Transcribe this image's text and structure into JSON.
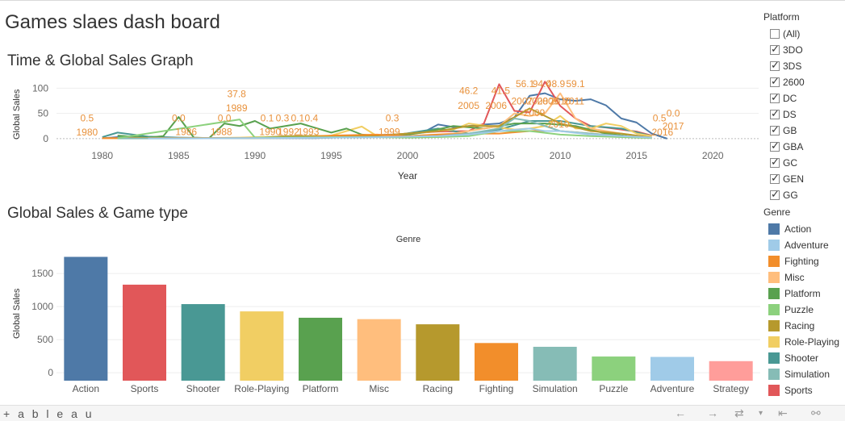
{
  "dashboard": {
    "title": "Games slaes dash board",
    "line_section_title": "Time & Global Sales Graph",
    "bar_section_title": "Global Sales & Game type"
  },
  "platform_filter": {
    "title": "Platform",
    "items": [
      {
        "label": "(All)",
        "checked": false
      },
      {
        "label": "3DO",
        "checked": true
      },
      {
        "label": "3DS",
        "checked": true
      },
      {
        "label": "2600",
        "checked": true
      },
      {
        "label": "DC",
        "checked": true
      },
      {
        "label": "DS",
        "checked": true
      },
      {
        "label": "GB",
        "checked": true
      },
      {
        "label": "GBA",
        "checked": true
      },
      {
        "label": "GC",
        "checked": true
      },
      {
        "label": "GEN",
        "checked": true
      },
      {
        "label": "GG",
        "checked": true
      }
    ]
  },
  "genre_legend": {
    "title": "Genre",
    "items": [
      {
        "label": "Action",
        "color": "#4e79a7"
      },
      {
        "label": "Adventure",
        "color": "#a0cbe8"
      },
      {
        "label": "Fighting",
        "color": "#f28e2b"
      },
      {
        "label": "Misc",
        "color": "#ffbe7d"
      },
      {
        "label": "Platform",
        "color": "#59a14f"
      },
      {
        "label": "Puzzle",
        "color": "#8cd17d"
      },
      {
        "label": "Racing",
        "color": "#b6992d"
      },
      {
        "label": "Role-Playing",
        "color": "#f1ce63"
      },
      {
        "label": "Shooter",
        "color": "#499894"
      },
      {
        "label": "Simulation",
        "color": "#86bcb6"
      },
      {
        "label": "Sports",
        "color": "#e15759"
      }
    ]
  },
  "toolbar": {
    "logo": "+ a b l e a u",
    "undo_icon": "undo-arrow-icon",
    "redo_icon": "redo-arrow-icon",
    "revert_icon": "revert-icon",
    "share_icon": "share-icon"
  },
  "chart_data": [
    {
      "type": "line",
      "title": "Time & Global Sales Graph",
      "xlabel": "Year",
      "ylabel": "Global Sales",
      "xlim": [
        1977,
        2023
      ],
      "ylim": [
        -5,
        115
      ],
      "x_ticks": [
        "1980",
        "1985",
        "1990",
        "1995",
        "2000",
        "2005",
        "2010",
        "2015",
        "2020"
      ],
      "y_ticks": [
        "0",
        "50",
        "100"
      ],
      "series": [
        {
          "name": "Action",
          "color": "#4e79a7",
          "x": [
            1980,
            1981,
            1982,
            1983,
            1985,
            1987,
            1989,
            1990,
            1991,
            1992,
            1993,
            1994,
            1995,
            1996,
            1997,
            1998,
            1999,
            2000,
            2001,
            2002,
            2003,
            2004,
            2005,
            2006,
            2007,
            2008,
            2009,
            2010,
            2011,
            2012,
            2013,
            2014,
            2015,
            2016,
            2017
          ],
          "y": [
            0.5,
            3,
            2,
            1,
            1,
            1,
            1,
            2,
            1,
            1,
            1,
            1,
            2,
            3,
            5,
            7,
            8,
            9,
            12,
            28,
            23,
            25,
            28,
            30,
            42,
            85,
            90,
            78,
            75,
            78,
            66,
            40,
            32,
            10,
            0.0
          ]
        },
        {
          "name": "Sports",
          "color": "#e15759",
          "x": [
            1980,
            1983,
            1986,
            1988,
            1990,
            1992,
            1995,
            1998,
            2000,
            2002,
            2004,
            2005,
            2006,
            2007,
            2008,
            2009,
            2010,
            2011,
            2012,
            2013,
            2014,
            2015,
            2016
          ],
          "y": [
            0.5,
            1,
            1,
            1,
            1,
            2,
            3,
            6,
            10,
            14,
            15,
            30,
            108,
            55,
            52,
            113,
            65,
            40,
            25,
            22,
            18,
            14,
            6
          ]
        },
        {
          "name": "Shooter",
          "color": "#499894",
          "x": [
            1980,
            1981,
            1983,
            1985,
            1987,
            1990,
            1993,
            1996,
            1999,
            2002,
            2004,
            2006,
            2008,
            2010,
            2012,
            2014,
            2016
          ],
          "y": [
            3,
            12,
            4,
            2,
            1,
            1,
            2,
            5,
            6,
            20,
            10,
            18,
            35,
            35,
            25,
            20,
            5
          ]
        },
        {
          "name": "Role-Playing",
          "color": "#f1ce63",
          "x": [
            1986,
            1989,
            1990,
            1992,
            1995,
            1997,
            1998,
            1999,
            2001,
            2003,
            2004,
            2006,
            2007,
            2008,
            2009,
            2010,
            2011,
            2012,
            2013,
            2014,
            2015,
            2016
          ],
          "y": [
            1,
            2,
            3,
            4,
            6,
            24,
            5,
            8,
            12,
            18,
            30,
            22,
            18,
            20,
            25,
            45,
            20,
            20,
            30,
            25,
            10,
            5
          ]
        },
        {
          "name": "Platform",
          "color": "#59a14f",
          "x": [
            1981,
            1983,
            1984,
            1985,
            1986,
            1987,
            1988,
            1989,
            1990,
            1991,
            1993,
            1995,
            1996,
            1997,
            1999,
            2001,
            2003,
            2005,
            2007,
            2009,
            2011,
            2013,
            2015
          ],
          "y": [
            6,
            2,
            5,
            43,
            2,
            1,
            30,
            25,
            35,
            20,
            30,
            12,
            20,
            8,
            4,
            12,
            25,
            20,
            30,
            30,
            25,
            10,
            3
          ]
        },
        {
          "name": "Misc",
          "color": "#ffbe7d",
          "x": [
            1980,
            1985,
            1990,
            1995,
            2000,
            2003,
            2006,
            2007,
            2008,
            2009,
            2010,
            2011,
            2012,
            2014,
            2016
          ],
          "y": [
            0.5,
            1,
            1,
            2,
            5,
            10,
            25,
            50,
            45,
            50,
            90,
            40,
            20,
            10,
            2
          ]
        },
        {
          "name": "Racing",
          "color": "#b6992d",
          "x": [
            1982,
            1985,
            1990,
            1992,
            1995,
            1998,
            2000,
            2002,
            2004,
            2006,
            2008,
            2010,
            2012,
            2014,
            2016
          ],
          "y": [
            1,
            1,
            1,
            5,
            5,
            6,
            10,
            15,
            25,
            25,
            60,
            30,
            15,
            10,
            2
          ]
        },
        {
          "name": "Fighting",
          "color": "#f28e2b",
          "x": [
            1980,
            1985,
            1990,
            1993,
            1995,
            1998,
            2000,
            2002,
            2004,
            2006,
            2008,
            2010,
            2012,
            2014,
            2016
          ],
          "y": [
            1,
            1,
            1,
            2,
            6,
            8,
            5,
            8,
            10,
            10,
            15,
            15,
            10,
            5,
            2
          ]
        },
        {
          "name": "Simulation",
          "color": "#86bcb6",
          "x": [
            1981,
            1985,
            1990,
            1995,
            1999,
            2002,
            2004,
            2005,
            2006,
            2007,
            2008,
            2009,
            2010,
            2012,
            2014,
            2016
          ],
          "y": [
            0.5,
            0.5,
            1,
            2,
            3,
            5,
            10,
            15,
            20,
            40,
            35,
            25,
            15,
            10,
            5,
            2
          ]
        },
        {
          "name": "Puzzle",
          "color": "#8cd17d",
          "x": [
            1981,
            1989,
            1990,
            1995,
            1998,
            2000,
            2002,
            2004,
            2006,
            2008,
            2010,
            2012,
            2014,
            2016
          ],
          "y": [
            1,
            38,
            2,
            3,
            3,
            2,
            3,
            5,
            15,
            15,
            8,
            5,
            3,
            1
          ]
        },
        {
          "name": "Adventure",
          "color": "#a0cbe8",
          "x": [
            1983,
            1985,
            1990,
            1995,
            1998,
            2000,
            2002,
            2004,
            2006,
            2008,
            2009,
            2010,
            2012,
            2014,
            2016
          ],
          "y": [
            0.4,
            0.5,
            1,
            2,
            3,
            4,
            5,
            8,
            15,
            20,
            15,
            15,
            8,
            5,
            2
          ]
        }
      ],
      "data_labels": [
        {
          "text": "0.5",
          "x": 1979,
          "y": 34
        },
        {
          "text": "1980",
          "x": 1979,
          "y": 6
        },
        {
          "text": "0.0",
          "x": 1985,
          "y": 34
        },
        {
          "text": "1986",
          "x": 1985.5,
          "y": 7
        },
        {
          "text": "37.8",
          "x": 1988.8,
          "y": 82
        },
        {
          "text": "1989",
          "x": 1988.8,
          "y": 54
        },
        {
          "text": "0.0",
          "x": 1988,
          "y": 34
        },
        {
          "text": "1988",
          "x": 1987.8,
          "y": 7
        },
        {
          "text": "0.1",
          "x": 1990.8,
          "y": 34
        },
        {
          "text": "0.3",
          "x": 1991.8,
          "y": 34
        },
        {
          "text": "0.1",
          "x": 1992.8,
          "y": 34
        },
        {
          "text": "0.4",
          "x": 1993.7,
          "y": 34
        },
        {
          "text": "1990",
          "x": 1991,
          "y": 7
        },
        {
          "text": "1992",
          "x": 1992.2,
          "y": 7
        },
        {
          "text": "1993",
          "x": 1993.5,
          "y": 7
        },
        {
          "text": "0.3",
          "x": 1999,
          "y": 34
        },
        {
          "text": "1999",
          "x": 1998.8,
          "y": 7
        },
        {
          "text": "46.2",
          "x": 2004,
          "y": 89
        },
        {
          "text": "2005",
          "x": 2004,
          "y": 59
        },
        {
          "text": "41.5",
          "x": 2006.1,
          "y": 89
        },
        {
          "text": "2006",
          "x": 2005.8,
          "y": 59
        },
        {
          "text": "56.1",
          "x": 2007.7,
          "y": 102
        },
        {
          "text": "94.0",
          "x": 2008.8,
          "y": 102
        },
        {
          "text": "48.9",
          "x": 2009.7,
          "y": 102
        },
        {
          "text": "59.1",
          "x": 2011,
          "y": 102
        },
        {
          "text": "2007",
          "x": 2007.5,
          "y": 68
        },
        {
          "text": "2008",
          "x": 2008.5,
          "y": 68
        },
        {
          "text": "2009",
          "x": 2009.2,
          "y": 68
        },
        {
          "text": "2010",
          "x": 2010,
          "y": 68
        },
        {
          "text": "2011",
          "x": 2010.9,
          "y": 68
        },
        {
          "text": "2009",
          "x": 2008.3,
          "y": 45
        },
        {
          "text": "2010",
          "x": 2009.9,
          "y": 22
        },
        {
          "text": "0.0",
          "x": 2017.4,
          "y": 44
        },
        {
          "text": "2017",
          "x": 2017.4,
          "y": 18
        },
        {
          "text": "0.5",
          "x": 2016.5,
          "y": 34
        },
        {
          "text": "2016",
          "x": 2016.7,
          "y": 6
        }
      ]
    },
    {
      "type": "bar",
      "title": "Global Sales & Game type",
      "header": "Genre",
      "xlabel": "",
      "ylabel": "Global Sales",
      "ylim": [
        -120,
        1830
      ],
      "y_ticks": [
        "0",
        "500",
        "1000",
        "1500"
      ],
      "categories": [
        "Action",
        "Sports",
        "Shooter",
        "Role-Playing",
        "Platform",
        "Misc",
        "Racing",
        "Fighting",
        "Simulation",
        "Puzzle",
        "Adventure",
        "Strategy"
      ],
      "values": [
        1751,
        1331,
        1037,
        927,
        831,
        810,
        732,
        449,
        392,
        245,
        239,
        175
      ],
      "colors": [
        "#4e79a7",
        "#e15759",
        "#499894",
        "#f1ce63",
        "#59a14f",
        "#ffbe7d",
        "#b6992d",
        "#f28e2b",
        "#86bcb6",
        "#8cd17d",
        "#a0cbe8",
        "#ff9d9a"
      ]
    }
  ]
}
